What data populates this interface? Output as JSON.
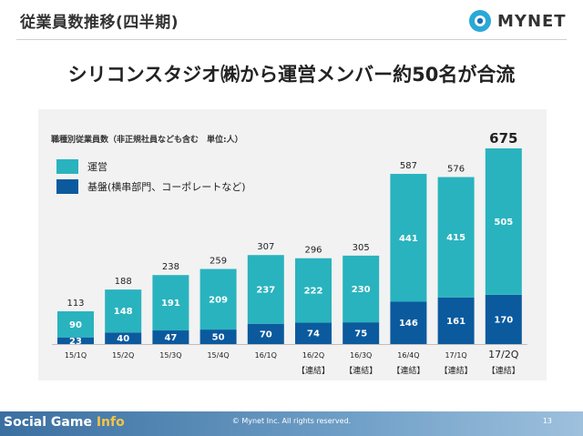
{
  "header": {
    "title": "従業員数推移(四半期)",
    "logo_text": "MYNET"
  },
  "headline": "シリコンスタジオ㈱から運営メンバー約50名が合流",
  "colors": {
    "operations": "#29b3be",
    "base": "#0b5a9e",
    "panel": "#f2f2f2"
  },
  "chart_data": {
    "type": "bar",
    "stacked": true,
    "title": "職種別従業員数（非正規社員なども含む　単位:人）",
    "legend": [
      {
        "name": "運営",
        "color": "#29b3be"
      },
      {
        "name": "基盤(横串部門、コーポレートなど)",
        "color": "#0b5a9e"
      }
    ],
    "categories": [
      "15/1Q",
      "15/2Q",
      "15/3Q",
      "15/4Q",
      "16/1Q",
      "16/2Q",
      "16/3Q",
      "16/4Q",
      "17/1Q",
      "17/2Q"
    ],
    "category_notes": [
      "",
      "",
      "",
      "",
      "",
      "【連結】",
      "【連結】",
      "【連結】",
      "【連結】",
      "【連結】"
    ],
    "series": [
      {
        "name": "基盤(横串部門、コーポレートなど)",
        "values": [
          23,
          40,
          47,
          50,
          70,
          74,
          75,
          146,
          161,
          170
        ]
      },
      {
        "name": "運営",
        "values": [
          90,
          148,
          191,
          209,
          237,
          222,
          230,
          441,
          415,
          505
        ]
      }
    ],
    "totals": [
      113,
      188,
      238,
      259,
      307,
      296,
      305,
      587,
      576,
      675
    ],
    "ylim": [
      0,
      700
    ]
  },
  "footer": {
    "brand_prefix": "Social Game ",
    "brand_suffix": "Info",
    "copyright": "© Mynet Inc. All rights reserved.",
    "page": "13"
  }
}
